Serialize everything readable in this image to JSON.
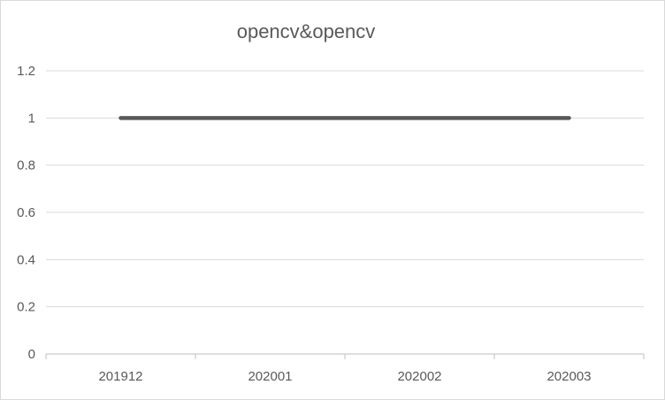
{
  "chart_data": {
    "type": "line",
    "title": "opencv&opencv",
    "categories": [
      "201912",
      "202001",
      "202002",
      "202003"
    ],
    "series": [
      {
        "values": [
          1,
          1,
          1,
          1
        ]
      }
    ],
    "ylim": [
      0,
      1.2
    ],
    "yticks": [
      "0",
      "0.2",
      "0.4",
      "0.6",
      "0.8",
      "1",
      "1.2"
    ],
    "grid": true,
    "colors": {
      "line": "#595959",
      "grid": "#d9d9d9",
      "axis": "#bfbfbf",
      "text": "#595959"
    }
  }
}
